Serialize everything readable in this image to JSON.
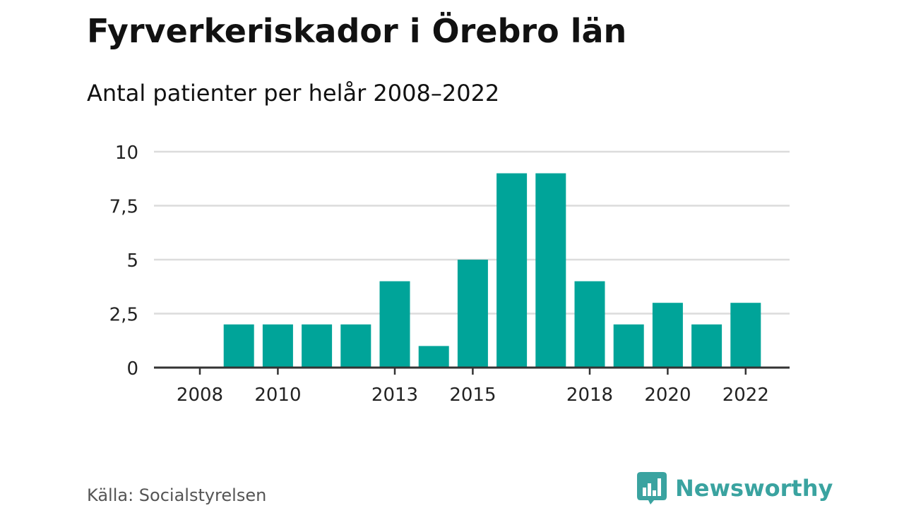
{
  "title": "Fyrverkeriskador i Örebro län",
  "subtitle": "Antal patienter per helår 2008–2022",
  "source": "Källa: Socialstyrelsen",
  "brand": {
    "name": "Newsworthy",
    "icon": "bar-chart-speech-bubble-icon",
    "color": "#3aa3a0"
  },
  "colors": {
    "bar": "#00a499",
    "grid": "#dcdcdc",
    "axis": "#333333",
    "text": "#222222"
  },
  "chart_data": {
    "type": "bar",
    "title": "Fyrverkeriskador i Örebro län",
    "subtitle": "Antal patienter per helår 2008–2022",
    "xlabel": "",
    "ylabel": "",
    "categories": [
      2008,
      2009,
      2010,
      2011,
      2012,
      2013,
      2014,
      2015,
      2016,
      2017,
      2018,
      2019,
      2020,
      2021,
      2022
    ],
    "values": [
      0,
      2,
      2,
      2,
      2,
      4,
      1,
      5,
      9,
      9,
      4,
      2,
      3,
      2,
      3
    ],
    "ylim": [
      0,
      10
    ],
    "y_ticks": [
      0,
      2.5,
      5,
      7.5,
      10
    ],
    "y_tick_labels": [
      "0",
      "2,5",
      "5",
      "7,5",
      "10"
    ],
    "x_tick_labels": [
      "2008",
      "2010",
      "2013",
      "2015",
      "2018",
      "2020",
      "2022"
    ],
    "grid": true,
    "legend": "none"
  }
}
